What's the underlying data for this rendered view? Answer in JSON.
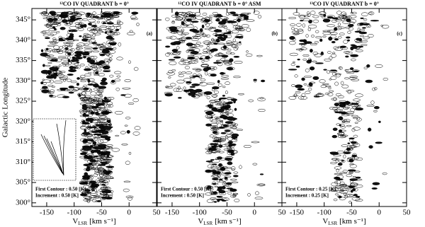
{
  "chart_data": [
    {
      "type": "contour",
      "title": "¹²CO IV QUADRANT b = 0°",
      "panel_label": "(a)",
      "y_label": "Galactic Longitude",
      "x_label": {
        "main": "V",
        "sub": "LSR",
        "unit": "[km s⁻¹]"
      },
      "annotations": [
        "First Contour : 0.50 [K]",
        "Increment : 0.50 [K]"
      ],
      "xlim": [
        -177,
        50
      ],
      "xticks": [
        -150,
        -100,
        -50,
        0,
        50
      ],
      "ylim": [
        299.1,
        347.8
      ],
      "yticks": [
        {
          "value": 300,
          "label": "300°"
        },
        {
          "value": 305,
          "label": "305°"
        },
        {
          "value": 310,
          "label": "310°"
        },
        {
          "value": 315,
          "label": "315°"
        },
        {
          "value": 320,
          "label": "320°"
        },
        {
          "value": 325,
          "label": "325°"
        },
        {
          "value": 330,
          "label": "330°"
        },
        {
          "value": 335,
          "label": "335°"
        },
        {
          "value": 340,
          "label": "340°"
        },
        {
          "value": 345,
          "label": "345°"
        }
      ]
    },
    {
      "type": "contour",
      "title": "¹²CO IV QUADRANT b = 0° ASM",
      "panel_label": "(b)",
      "x_label": {
        "main": "V",
        "sub": "LSR",
        "unit": "[km s⁻¹]"
      },
      "annotations": [
        "First Contour : 0.50 [K]",
        "Increment : 0.50 [K]"
      ],
      "xlim": [
        -177,
        50
      ],
      "xticks": [
        -150,
        -100,
        -50,
        0,
        50
      ],
      "ylim": [
        299.1,
        347.8
      ],
      "yticks": [
        300,
        305,
        310,
        315,
        320,
        325,
        330,
        335,
        340,
        345
      ]
    },
    {
      "type": "contour",
      "title": "¹³CO IV QUADRANT b = 0°",
      "panel_label": "(c)",
      "x_label": {
        "main": "V",
        "sub": "LSR",
        "unit": "[km s⁻¹]"
      },
      "annotations": [
        "First Contour : 0.25 [K]",
        "Increment : 0.25 [K]"
      ],
      "xlim": [
        -177,
        50
      ],
      "xticks": [
        -150,
        -100,
        -50,
        0,
        50
      ],
      "ylim": [
        299.1,
        347.8
      ],
      "yticks": [
        300,
        305,
        310,
        315,
        320,
        325,
        330,
        335,
        340,
        345
      ]
    }
  ]
}
